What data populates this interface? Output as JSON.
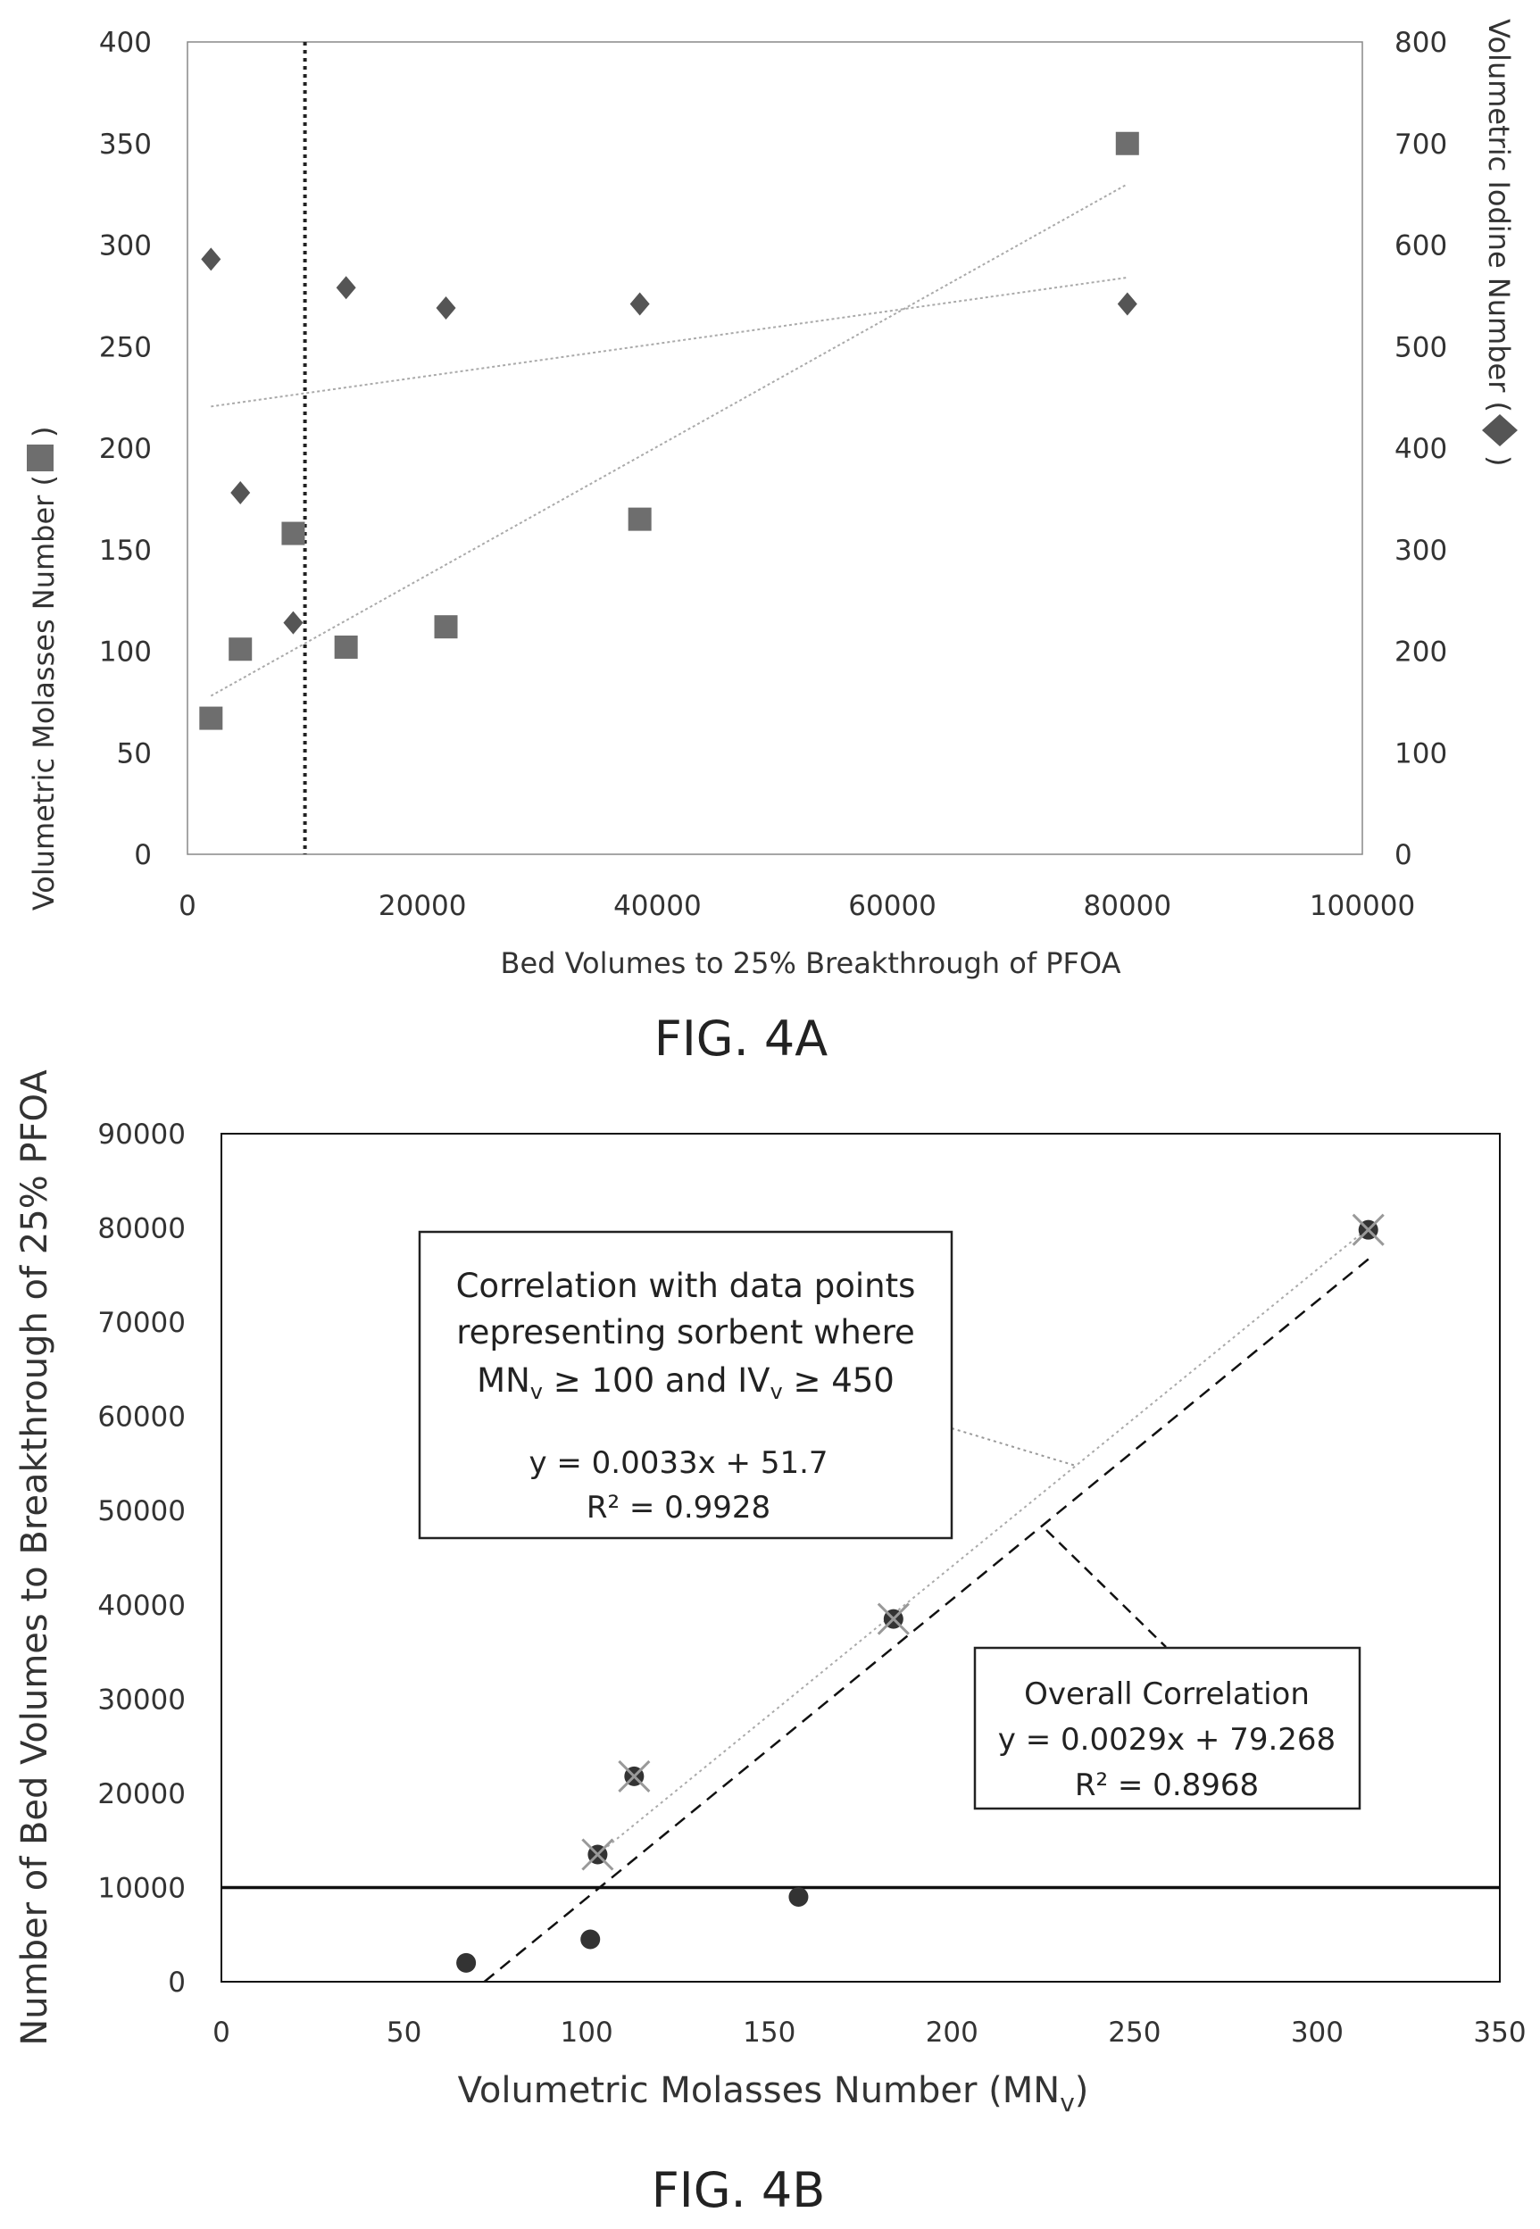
{
  "chart_data": [
    {
      "type": "scatter",
      "caption": "FIG. 4A",
      "xlabel": "Bed Volumes to 25% Breakthrough of PFOA",
      "ylabel_left": "Volumetric Molasses Number (",
      "ylabel_left_end": ")",
      "ylabel_right": "Volumetric Iodine Number (",
      "ylabel_right_end": ")",
      "xlim": [
        0,
        100000
      ],
      "ylim_left": [
        0,
        400
      ],
      "ylim_right": [
        0,
        800
      ],
      "x_ticks": [
        "0",
        "20000",
        "40000",
        "60000",
        "80000",
        "100000"
      ],
      "y_ticks_left": [
        "0",
        "50",
        "100",
        "150",
        "200",
        "250",
        "300",
        "350",
        "400"
      ],
      "y_ticks_right": [
        "0",
        "100",
        "200",
        "300",
        "400",
        "500",
        "600",
        "700",
        "800"
      ],
      "vertical_reference_x": 10000,
      "grid": false,
      "series": [
        {
          "marker": "square",
          "axis": "left",
          "color": "#6e6e6e",
          "points": [
            [
              2000,
              67
            ],
            [
              4500,
              101
            ],
            [
              9000,
              158
            ],
            [
              13500,
              102
            ],
            [
              22000,
              112
            ],
            [
              38500,
              165
            ],
            [
              80000,
              350
            ]
          ]
        },
        {
          "marker": "diamond",
          "axis": "right",
          "color": "#555555",
          "points": [
            [
              2000,
              586
            ],
            [
              4500,
              356
            ],
            [
              9000,
              228
            ],
            [
              13500,
              558
            ],
            [
              22000,
              538
            ],
            [
              38500,
              542
            ],
            [
              80000,
              542
            ]
          ]
        }
      ],
      "trendlines": [
        {
          "axis": "left",
          "from": [
            2000,
            78
          ],
          "to": [
            80000,
            330
          ]
        },
        {
          "axis": "right",
          "from": [
            2000,
            441
          ],
          "to": [
            80000,
            568
          ]
        }
      ]
    },
    {
      "type": "scatter",
      "caption": "FIG. 4B",
      "xlabel": "Volumetric Molasses Number (MN",
      "xlabel_sub": "v",
      "xlabel_end": ")",
      "ylabel": "Number of Bed Volumes to Breakthrough of 25% PFOA",
      "xlim": [
        0,
        350
      ],
      "ylim": [
        0,
        90000
      ],
      "x_ticks": [
        "0",
        "50",
        "100",
        "150",
        "200",
        "250",
        "300",
        "350"
      ],
      "y_ticks": [
        "0",
        "10000",
        "20000",
        "30000",
        "40000",
        "50000",
        "60000",
        "70000",
        "80000",
        "90000"
      ],
      "horizontal_reference_y": 10000,
      "grid": false,
      "points_circle": [
        [
          67,
          2000
        ],
        [
          101,
          4500
        ],
        [
          158,
          9000
        ]
      ],
      "points_crossed": [
        [
          103,
          13500
        ],
        [
          113,
          21800
        ],
        [
          184,
          38500
        ],
        [
          314,
          79800
        ]
      ],
      "trendlines": [
        {
          "style": "dotted",
          "from": [
            103,
            13500
          ],
          "to": [
            314,
            80000
          ]
        },
        {
          "style": "dashed",
          "from": [
            72,
            0
          ],
          "to": [
            315,
            77000
          ]
        }
      ],
      "annotation_1": {
        "line1": "Correlation with data points",
        "line2": "representing sorbent where",
        "line3_a": "MN",
        "line3_sub1": "v",
        "line3_b": " ≥ 100 and IV",
        "line3_sub2": "v",
        "line3_c": " ≥ 450",
        "eq": "y = 0.0033x + 51.7",
        "r2": "R² = 0.9928"
      },
      "annotation_2": {
        "line1": "Overall Correlation",
        "eq": "y = 0.0029x + 79.268",
        "r2": "R² = 0.8968"
      }
    }
  ]
}
